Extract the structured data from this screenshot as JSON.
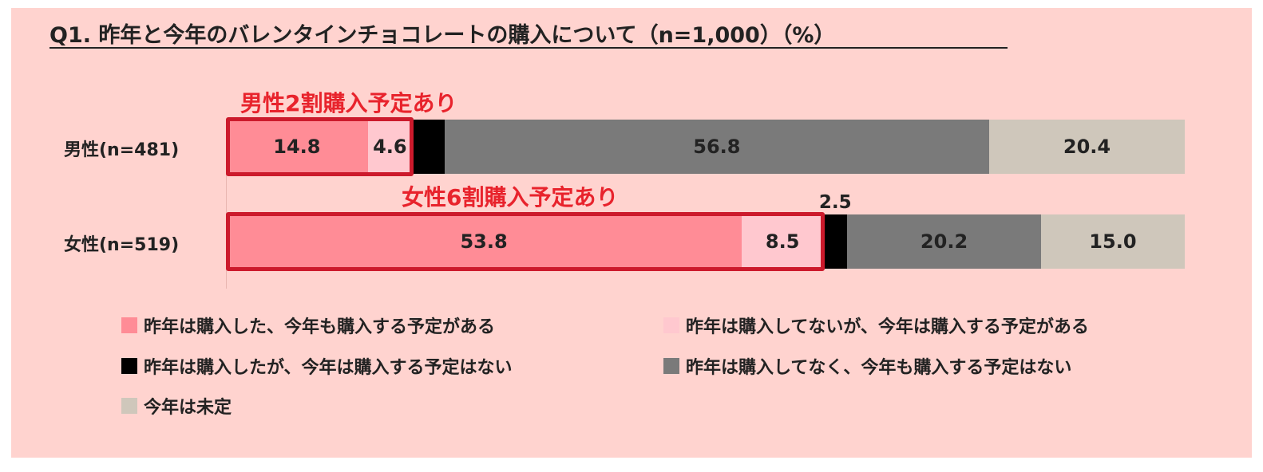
{
  "chart_data": {
    "type": "bar",
    "orientation": "horizontal-stacked-100",
    "title": "Q1. 昨年と今年のバレンタインチョコレートの購入について（n=1,000）（%）",
    "categories": [
      "男性(n=481)",
      "女性(n=519)"
    ],
    "series": [
      {
        "name": "昨年は購入した、今年も購入する予定がある",
        "color": "#ff8c96",
        "values": [
          14.8,
          53.8
        ]
      },
      {
        "name": "昨年は購入してないが、今年は購入する予定がある",
        "color": "#ffc8cf",
        "values": [
          4.6,
          8.5
        ]
      },
      {
        "name": "昨年は購入したが、今年は購入する予定はない",
        "color": "#000000",
        "values": [
          3.4,
          2.5
        ]
      },
      {
        "name": "昨年は購入してなく、今年も購入する予定はない",
        "color": "#7a7a7a",
        "values": [
          56.8,
          20.2
        ]
      },
      {
        "name": "今年は未定",
        "color": "#cfc7bb",
        "values": [
          20.4,
          15.0
        ]
      }
    ],
    "labels": [
      [
        "14.8",
        "4.6",
        "",
        "56.8",
        "20.4"
      ],
      [
        "53.8",
        "8.5",
        "2.5",
        "20.2",
        "15.0"
      ]
    ],
    "annotations": [
      {
        "row": 0,
        "text": "男性2割購入予定あり"
      },
      {
        "row": 1,
        "text": "女性6割購入予定あり"
      }
    ],
    "xlim": [
      0,
      100
    ],
    "legend_position": "bottom"
  }
}
